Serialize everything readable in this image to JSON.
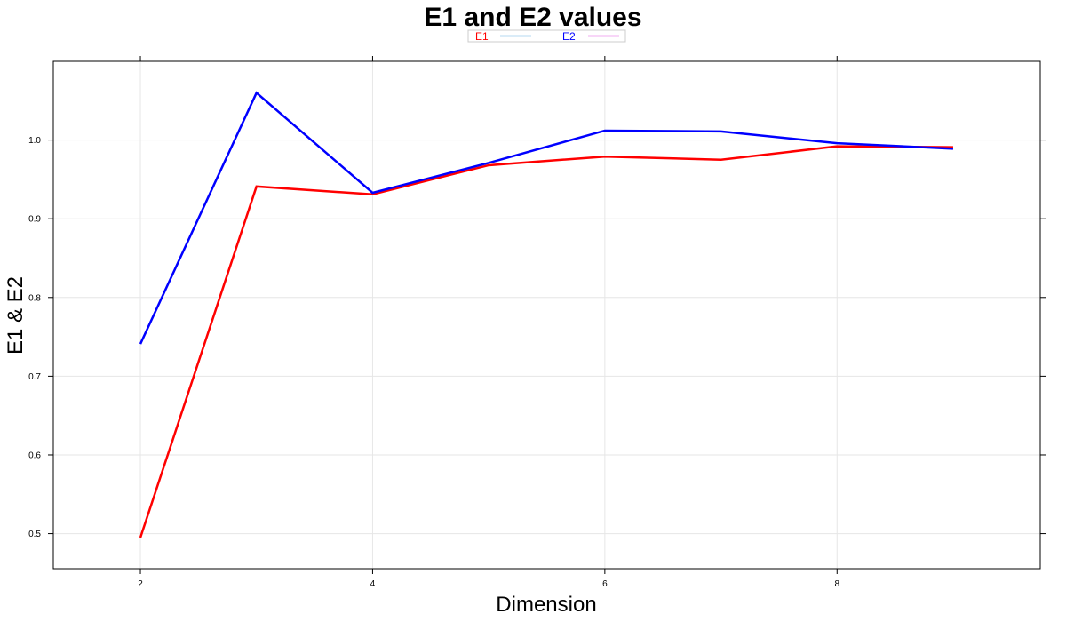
{
  "chart_data": {
    "type": "line",
    "title": "E1 and E2 values",
    "xlabel": "Dimension",
    "ylabel": "E1 & E2",
    "x": [
      2,
      3,
      4,
      5,
      6,
      7,
      8,
      9
    ],
    "xlim": [
      1.25,
      9.75
    ],
    "ylim": [
      0.4555,
      1.1
    ],
    "xticks": [
      2,
      4,
      6,
      8
    ],
    "yticks": [
      0.5,
      0.6,
      0.7,
      0.8,
      0.9,
      1.0
    ],
    "xtick_labels": [
      "2",
      "4",
      "6",
      "8"
    ],
    "ytick_labels": [
      "0.5",
      "0.6",
      "0.7",
      "0.8",
      "0.9",
      "1.0"
    ],
    "grid": true,
    "legend_position": "top",
    "series": [
      {
        "name": "E1",
        "label_color": "#ff0000",
        "legend_line_color": "#6cb6e6",
        "line_color": "#ff0000",
        "values": [
          0.495,
          0.941,
          0.931,
          0.968,
          0.979,
          0.975,
          0.992,
          0.991
        ]
      },
      {
        "name": "E2",
        "label_color": "#0000ff",
        "legend_line_color": "#e65fe6",
        "line_color": "#0000ff",
        "values": [
          0.741,
          1.06,
          0.933,
          0.971,
          1.012,
          1.011,
          0.996,
          0.989
        ]
      }
    ]
  }
}
